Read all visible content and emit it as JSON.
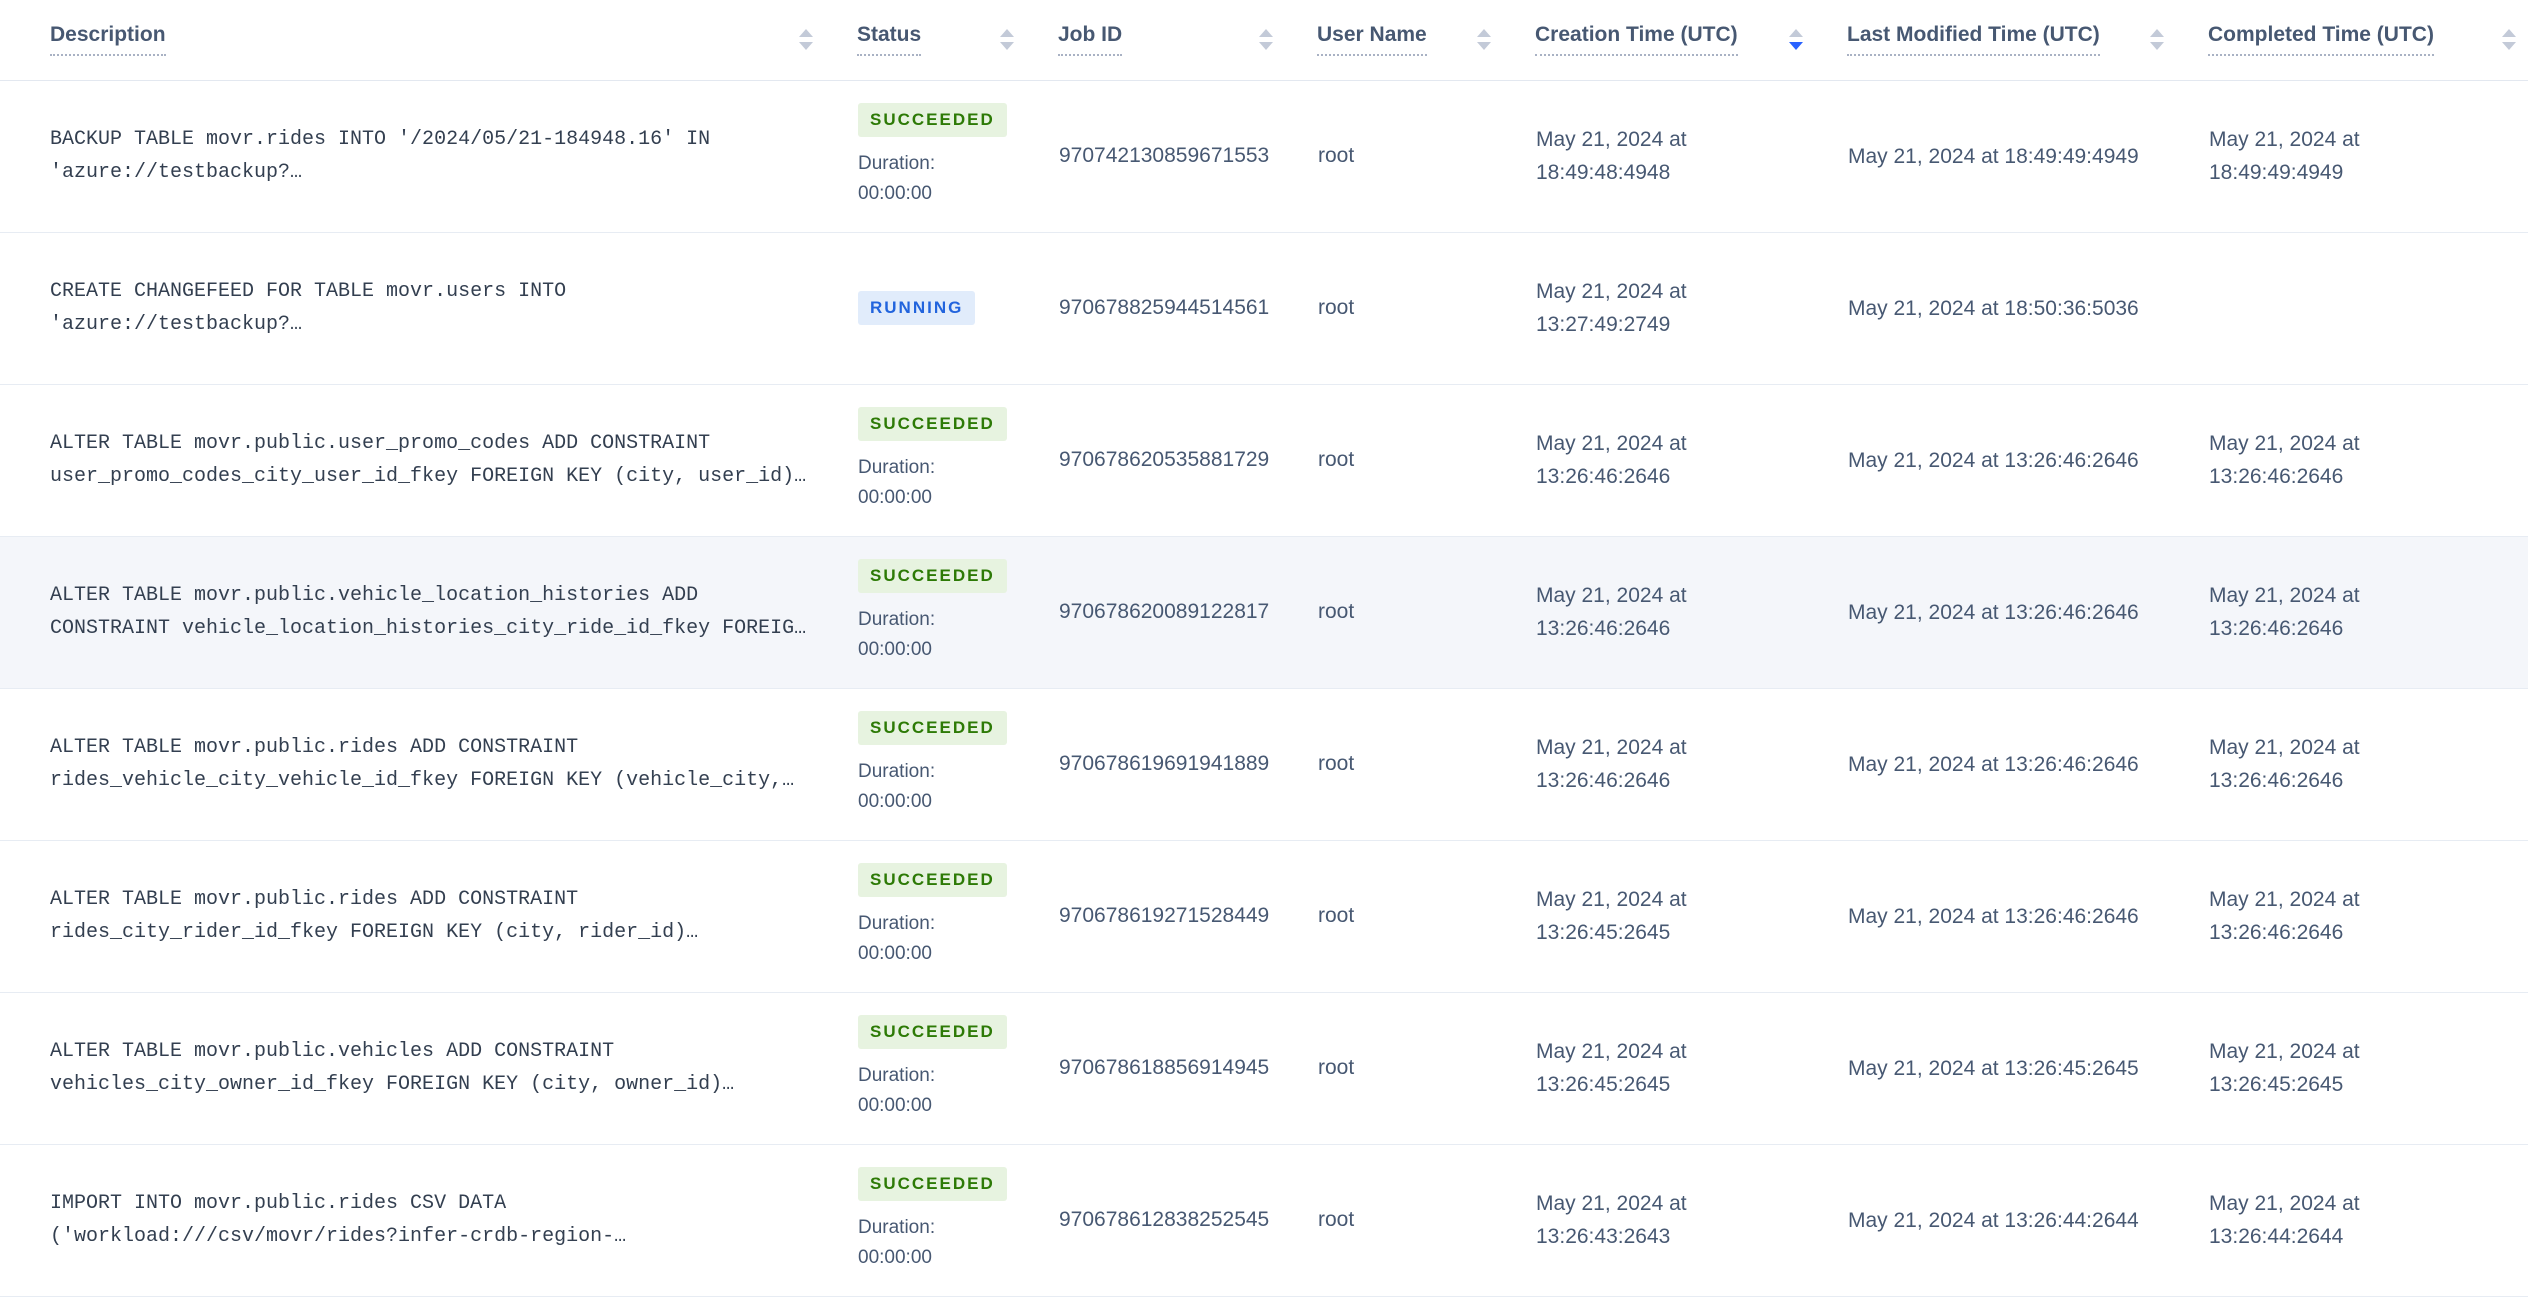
{
  "colors": {
    "succeeded-bg": "#e7f3e0",
    "succeeded-text": "#2d7a06",
    "running-bg": "#e1ecfb",
    "running-text": "#2264dd",
    "sort-active": "#2962ff",
    "sort-inactive": "#c3cad8",
    "row-highlight": "#f4f6fa"
  },
  "table": {
    "duration_label": "Duration:",
    "columns": [
      {
        "label": "Description",
        "sort": "none"
      },
      {
        "label": "Status",
        "sort": "none"
      },
      {
        "label": "Job ID",
        "sort": "none"
      },
      {
        "label": "User Name",
        "sort": "none"
      },
      {
        "label": "Creation Time (UTC)",
        "sort": "desc"
      },
      {
        "label": "Last Modified Time (UTC)",
        "sort": "none"
      },
      {
        "label": "Completed Time (UTC)",
        "sort": "none"
      }
    ],
    "rows": [
      {
        "description": "BACKUP TABLE movr.rides INTO '/2024/05/21-184948.16' IN 'azure://testbackup?…",
        "status": "SUCCEEDED",
        "duration": "00:00:00",
        "job_id": "970742130859671553",
        "user_name": "root",
        "creation_time": "May 21, 2024 at 18:49:48:4948",
        "last_modified_time": "May 21, 2024 at 18:49:49:4949",
        "completed_time": "May 21, 2024 at 18:49:49:4949",
        "highlighted": false
      },
      {
        "description": "CREATE CHANGEFEED FOR TABLE movr.users INTO 'azure://testbackup?…",
        "status": "RUNNING",
        "duration": "",
        "job_id": "970678825944514561",
        "user_name": "root",
        "creation_time": "May 21, 2024 at 13:27:49:2749",
        "last_modified_time": "May 21, 2024 at 18:50:36:5036",
        "completed_time": "",
        "highlighted": false
      },
      {
        "description": "ALTER TABLE movr.public.user_promo_codes ADD CONSTRAINT user_promo_codes_city_user_id_fkey FOREIGN KEY (city, user_id)…",
        "status": "SUCCEEDED",
        "duration": "00:00:00",
        "job_id": "970678620535881729",
        "user_name": "root",
        "creation_time": "May 21, 2024 at 13:26:46:2646",
        "last_modified_time": "May 21, 2024 at 13:26:46:2646",
        "completed_time": "May 21, 2024 at 13:26:46:2646",
        "highlighted": false
      },
      {
        "description": "ALTER TABLE movr.public.vehicle_location_histories ADD CONSTRAINT vehicle_location_histories_city_ride_id_fkey FOREIG…",
        "status": "SUCCEEDED",
        "duration": "00:00:00",
        "job_id": "970678620089122817",
        "user_name": "root",
        "creation_time": "May 21, 2024 at 13:26:46:2646",
        "last_modified_time": "May 21, 2024 at 13:26:46:2646",
        "completed_time": "May 21, 2024 at 13:26:46:2646",
        "highlighted": true
      },
      {
        "description": "ALTER TABLE movr.public.rides ADD CONSTRAINT rides_vehicle_city_vehicle_id_fkey FOREIGN KEY (vehicle_city,…",
        "status": "SUCCEEDED",
        "duration": "00:00:00",
        "job_id": "970678619691941889",
        "user_name": "root",
        "creation_time": "May 21, 2024 at 13:26:46:2646",
        "last_modified_time": "May 21, 2024 at 13:26:46:2646",
        "completed_time": "May 21, 2024 at 13:26:46:2646",
        "highlighted": false
      },
      {
        "description": "ALTER TABLE movr.public.rides ADD CONSTRAINT rides_city_rider_id_fkey FOREIGN KEY (city, rider_id)…",
        "status": "SUCCEEDED",
        "duration": "00:00:00",
        "job_id": "970678619271528449",
        "user_name": "root",
        "creation_time": "May 21, 2024 at 13:26:45:2645",
        "last_modified_time": "May 21, 2024 at 13:26:46:2646",
        "completed_time": "May 21, 2024 at 13:26:46:2646",
        "highlighted": false
      },
      {
        "description": "ALTER TABLE movr.public.vehicles ADD CONSTRAINT vehicles_city_owner_id_fkey FOREIGN KEY (city, owner_id)…",
        "status": "SUCCEEDED",
        "duration": "00:00:00",
        "job_id": "970678618856914945",
        "user_name": "root",
        "creation_time": "May 21, 2024 at 13:26:45:2645",
        "last_modified_time": "May 21, 2024 at 13:26:45:2645",
        "completed_time": "May 21, 2024 at 13:26:45:2645",
        "highlighted": false
      },
      {
        "description": "IMPORT INTO movr.public.rides CSV DATA ('workload:///csv/movr/rides?infer-crdb-region-…",
        "status": "SUCCEEDED",
        "duration": "00:00:00",
        "job_id": "970678612838252545",
        "user_name": "root",
        "creation_time": "May 21, 2024 at 13:26:43:2643",
        "last_modified_time": "May 21, 2024 at 13:26:44:2644",
        "completed_time": "May 21, 2024 at 13:26:44:2644",
        "highlighted": false
      }
    ]
  }
}
